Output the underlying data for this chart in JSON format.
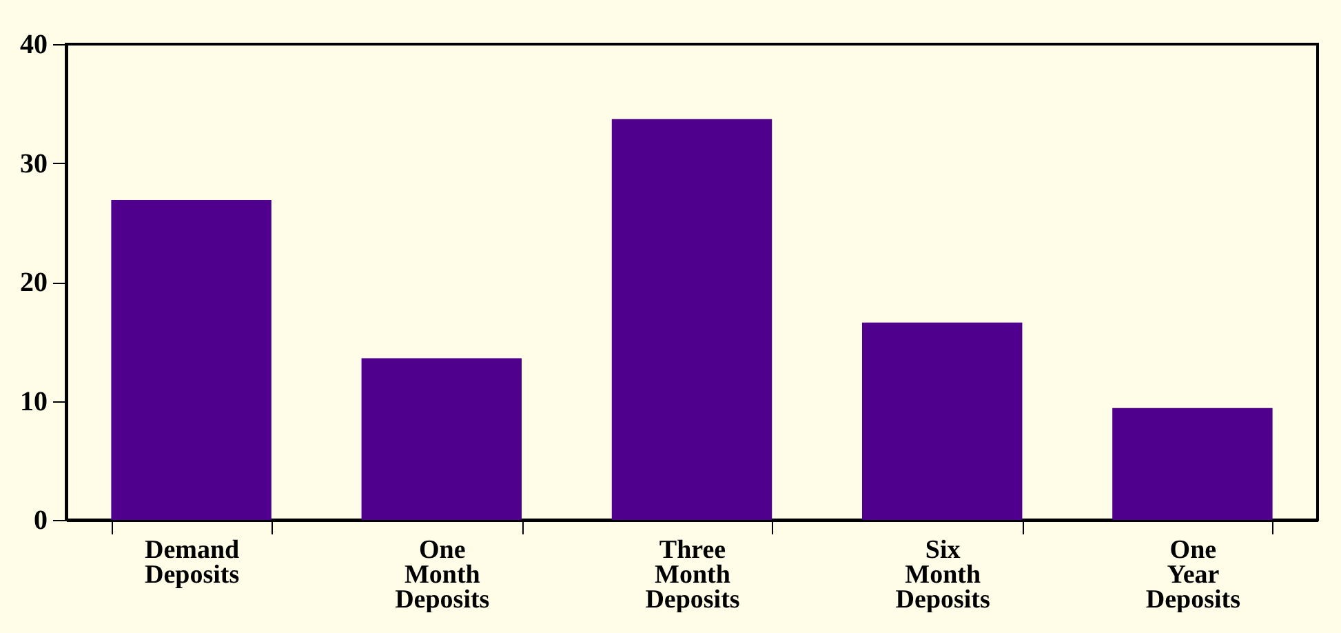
{
  "chart_data": {
    "type": "bar",
    "categories": [
      "Demand Deposits",
      "One Month Deposits",
      "Three Month Deposits",
      "Six Month Deposits",
      "One Year Deposits"
    ],
    "values": [
      26.9,
      13.6,
      33.7,
      16.6,
      9.4
    ],
    "color": "#4f008c",
    "ylim": [
      0,
      40
    ],
    "yticks": [
      0,
      10,
      20,
      30,
      40
    ],
    "grid": false
  }
}
